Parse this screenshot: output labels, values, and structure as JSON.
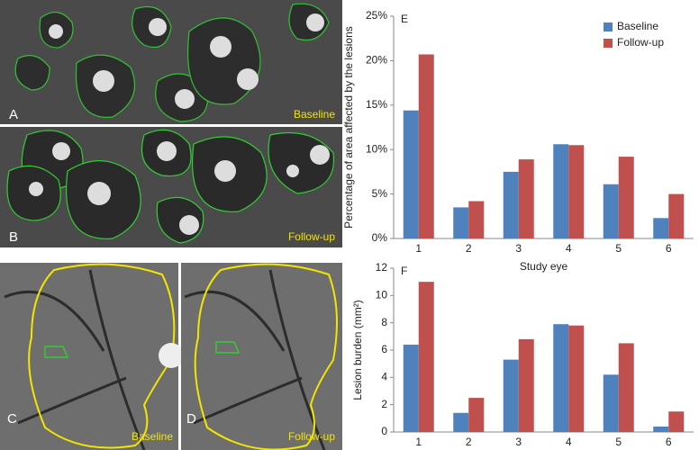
{
  "panels": [
    {
      "letter": "A",
      "caption": "Baseline"
    },
    {
      "letter": "B",
      "caption": "Follow-up"
    },
    {
      "letter": "C",
      "caption": "Baseline"
    },
    {
      "letter": "D",
      "caption": "Follow-up"
    }
  ],
  "chart_data": [
    {
      "type": "bar",
      "label": "E",
      "ylabel": "Percentage of area affected by the lesions",
      "xlabel": "Study eye",
      "categories": [
        "1",
        "2",
        "3",
        "4",
        "5",
        "6"
      ],
      "series": [
        {
          "name": "Baseline",
          "color": "#4f81bd",
          "values": [
            14.4,
            3.5,
            7.5,
            10.6,
            6.1,
            2.3
          ]
        },
        {
          "name": "Follow-up",
          "color": "#c0504d",
          "values": [
            20.7,
            4.2,
            8.9,
            10.5,
            9.2,
            5.0
          ]
        }
      ],
      "ylim": [
        0,
        25
      ],
      "yticks": [
        {
          "value": 0,
          "label": "0%"
        },
        {
          "value": 5,
          "label": "5%"
        },
        {
          "value": 10,
          "label": "10%"
        },
        {
          "value": 15,
          "label": "15%"
        },
        {
          "value": 20,
          "label": "20%"
        },
        {
          "value": 25,
          "label": "25%"
        }
      ],
      "legend": "top-right"
    },
    {
      "type": "bar",
      "label": "F",
      "ylabel": "Lesion burden (mm²)",
      "categories": [
        "1",
        "2",
        "3",
        "4",
        "5",
        "6"
      ],
      "series": [
        {
          "color": "#4f81bd",
          "values": [
            6.4,
            1.4,
            5.3,
            7.9,
            4.2,
            0.4
          ]
        },
        {
          "color": "#c0504d",
          "values": [
            11.0,
            2.5,
            6.8,
            7.8,
            6.5,
            1.5
          ]
        }
      ],
      "ylim": [
        0,
        12
      ],
      "yticks": [
        0,
        2,
        4,
        6,
        8,
        10,
        12
      ]
    }
  ]
}
